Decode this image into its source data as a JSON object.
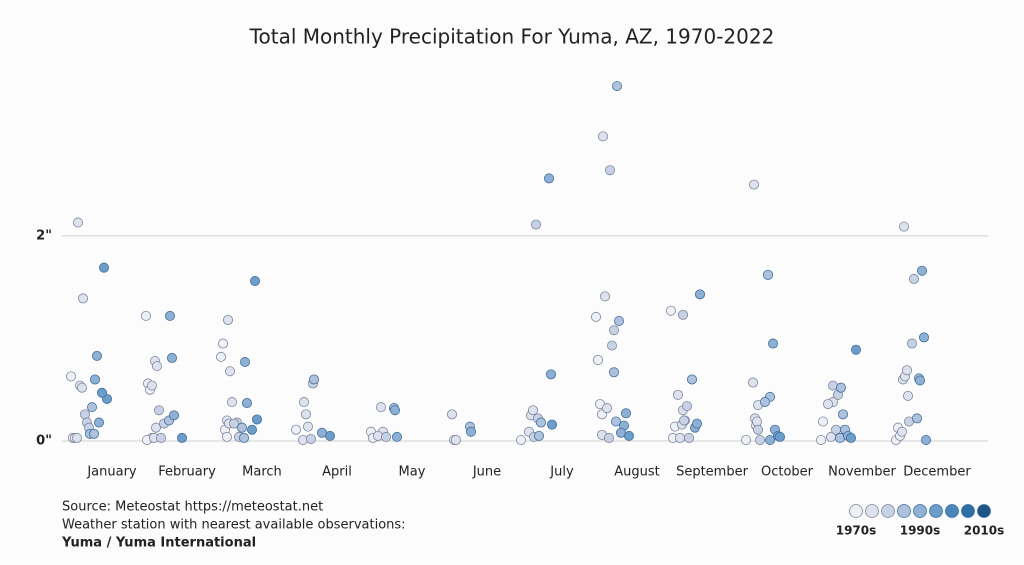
{
  "chart_data": {
    "type": "strip",
    "title": "Total Monthly Precipitation For Yuma, AZ, 1970-2022",
    "categories": [
      "January",
      "February",
      "March",
      "April",
      "May",
      "June",
      "July",
      "August",
      "September",
      "October",
      "November",
      "December"
    ],
    "values": [
      [
        0.63,
        0.03,
        0.03,
        1.39,
        2.13,
        0.54,
        0.52,
        0.03,
        0.26,
        0.18,
        0.13,
        0.07,
        0.33,
        0.07,
        0.6,
        0.83,
        0.18,
        0.41,
        0.47,
        1.69
      ],
      [
        1.22,
        0.56,
        0.5,
        0.03,
        0.01,
        0.78,
        0.73,
        0.54,
        0.03,
        0.13,
        0.17,
        0.3,
        0.03,
        0.2,
        1.22,
        0.81,
        0.25,
        0.03
      ],
      [
        0.82,
        0.95,
        0.11,
        0.04,
        1.18,
        0.68,
        0.38,
        0.2,
        0.17,
        0.18,
        0.04,
        0.17,
        0.13,
        0.03,
        0.77,
        0.37,
        1.56,
        0.21,
        0.11
      ],
      [
        0.11,
        0.38,
        0.26,
        0.14,
        0.01,
        0.02,
        0.56,
        0.6,
        0.08,
        0.05
      ],
      [
        0.09,
        0.03,
        0.33,
        0.09,
        0.05,
        0.04,
        0.32,
        0.3,
        0.04
      ],
      [
        0.26,
        0.01,
        0.01,
        0.14,
        0.09
      ],
      [
        0.01,
        0.09,
        0.25,
        0.3,
        0.04,
        2.11,
        0.22,
        0.05,
        0.18,
        2.56,
        0.65,
        0.16
      ],
      [
        1.21,
        0.79,
        0.36,
        0.26,
        2.97,
        1.41,
        0.32,
        0.06,
        2.64,
        0.93,
        1.08,
        0.03,
        3.46,
        1.17,
        0.67,
        0.19,
        0.15,
        0.27,
        0.08,
        0.05
      ],
      [
        1.27,
        0.03,
        0.14,
        0.3,
        0.45,
        0.03,
        0.16,
        1.23,
        0.2,
        0.34,
        0.03,
        0.2,
        0.6,
        1.43,
        0.13,
        0.17
      ],
      [
        0.01,
        2.5,
        0.15,
        0.35,
        0.57,
        0.22,
        0.19,
        0.11,
        0.01,
        1.62,
        0.43,
        0.38,
        0.95,
        0.11,
        0.01,
        0.05,
        0.04
      ],
      [
        0.01,
        0.19,
        0.04,
        0.38,
        0.36,
        0.11,
        0.45,
        0.54,
        0.52,
        0.26,
        0.11,
        0.03,
        0.05,
        0.89,
        0.03
      ],
      [
        0.01,
        0.13,
        0.05,
        0.44,
        0.6,
        0.63,
        0.69,
        0.09,
        2.09,
        0.95,
        1.58,
        0.19,
        0.22,
        0.61,
        0.59,
        1.66,
        1.01,
        0.01
      ]
    ],
    "shades": [
      [
        0,
        0,
        0,
        1,
        1,
        1,
        1,
        1,
        2,
        2,
        2,
        3,
        3,
        3,
        4,
        4,
        4,
        5,
        5,
        5
      ],
      [
        0,
        0,
        0,
        0,
        0,
        1,
        1,
        1,
        1,
        1,
        2,
        2,
        2,
        3,
        4,
        4,
        4,
        5
      ],
      [
        0,
        0,
        0,
        0,
        1,
        1,
        1,
        1,
        1,
        2,
        2,
        2,
        3,
        3,
        4,
        4,
        5,
        5,
        5
      ],
      [
        0,
        1,
        1,
        1,
        1,
        2,
        2,
        3,
        4,
        5
      ],
      [
        0,
        0,
        1,
        1,
        1,
        2,
        3,
        4,
        4
      ],
      [
        1,
        1,
        1,
        3,
        4
      ],
      [
        0,
        1,
        1,
        1,
        2,
        2,
        2,
        3,
        3,
        4,
        4,
        5
      ],
      [
        0,
        0,
        0,
        0,
        1,
        1,
        1,
        1,
        2,
        2,
        2,
        2,
        3,
        3,
        3,
        3,
        4,
        4,
        4,
        5
      ],
      [
        0,
        0,
        0,
        1,
        1,
        1,
        1,
        2,
        2,
        2,
        2,
        2,
        3,
        4,
        4,
        4
      ],
      [
        0,
        1,
        1,
        1,
        1,
        1,
        1,
        2,
        2,
        3,
        3,
        3,
        4,
        4,
        4,
        5,
        5
      ],
      [
        0,
        0,
        1,
        1,
        1,
        2,
        2,
        2,
        3,
        3,
        3,
        3,
        4,
        5,
        5
      ],
      [
        0,
        0,
        0,
        1,
        1,
        1,
        1,
        1,
        1,
        2,
        2,
        2,
        3,
        3,
        4,
        4,
        4,
        4
      ]
    ],
    "palette": [
      "#eef0f7",
      "#dde2ee",
      "#c8d2e6",
      "#aec2dd",
      "#8eb0d4",
      "#6d9dc9",
      "#4b87ba",
      "#2e6fa6",
      "#1c5587"
    ],
    "legend_labels": [
      "1970s",
      "1990s",
      "2010s"
    ],
    "ylim": [
      0,
      3.5
    ],
    "yticks": [
      {
        "value": 0,
        "label": "0\""
      },
      {
        "value": 2,
        "label": "2\""
      }
    ],
    "grid": true,
    "source": "Source: Meteostat https://meteostat.net",
    "note": "Weather station with nearest available observations:",
    "station": "Yuma / Yuma International"
  }
}
